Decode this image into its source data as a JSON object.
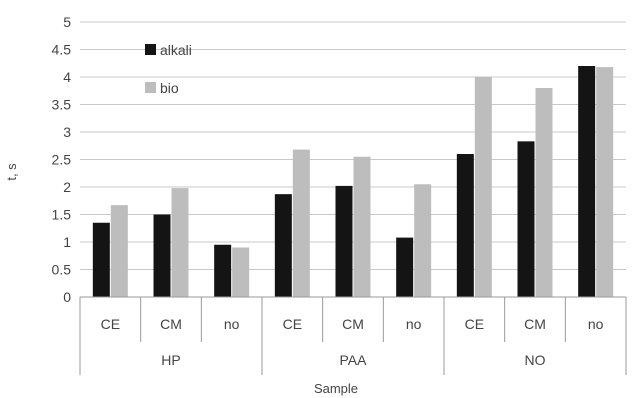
{
  "chart_data": {
    "type": "bar",
    "title": "",
    "xlabel": "Sample",
    "ylabel": "t, s",
    "ylim": [
      0,
      5
    ],
    "yticks": [
      "0",
      "0.5",
      "1",
      "1.5",
      "2",
      "2.5",
      "3",
      "3.5",
      "4",
      "4.5",
      "5"
    ],
    "grid": true,
    "legend_position": "top-left",
    "categories": [
      "CE",
      "CM",
      "no",
      "CE",
      "CM",
      "no",
      "CE",
      "CM",
      "no"
    ],
    "groups": [
      {
        "label": "HP",
        "count": 3
      },
      {
        "label": "PAA",
        "count": 3
      },
      {
        "label": "NO",
        "count": 3
      }
    ],
    "series": [
      {
        "name": "alkali",
        "color": "#141414",
        "values": [
          1.35,
          1.5,
          0.95,
          1.87,
          2.02,
          1.08,
          2.6,
          2.83,
          4.2
        ]
      },
      {
        "name": "bio",
        "color": "#bdbdbd",
        "values": [
          1.67,
          1.98,
          0.9,
          2.68,
          2.55,
          2.05,
          4.0,
          3.8,
          4.18
        ]
      }
    ]
  }
}
